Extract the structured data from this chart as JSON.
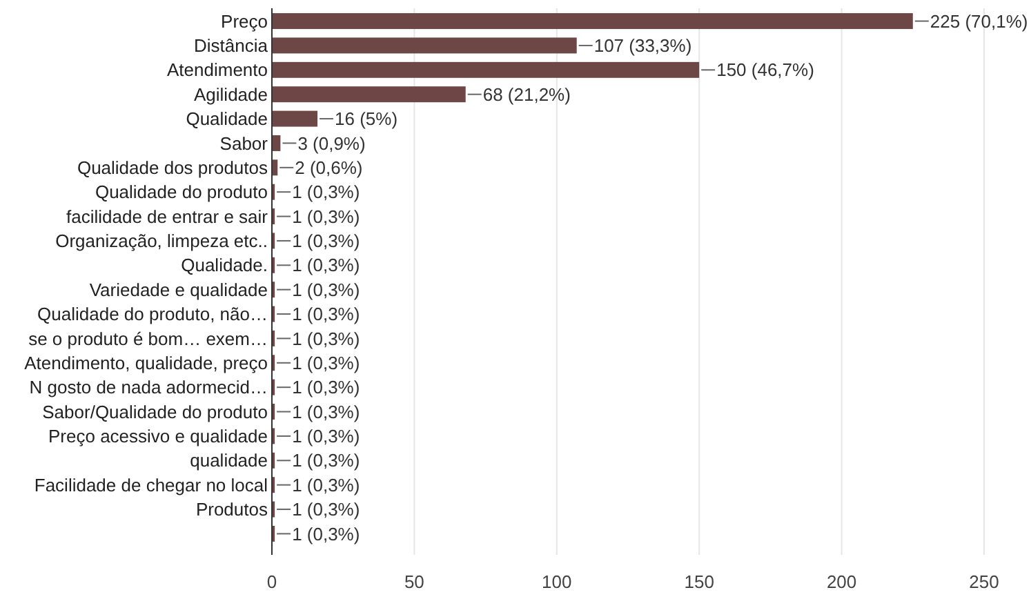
{
  "chart_data": {
    "type": "bar",
    "orientation": "horizontal",
    "categories": [
      "Preço",
      "Distância",
      "Atendimento",
      "Agilidade",
      "Qualidade",
      "Sabor",
      "Qualidade dos produtos",
      "Qualidade do produto",
      "facilidade de entrar e sair",
      "Organização, limpeza etc..",
      "Qualidade.",
      "Variedade e qualidade",
      "Qualidade do produto, não…",
      "se o produto é bom… exem…",
      "Atendimento, qualidade, preço",
      "N gosto de nada adormecid…",
      "Sabor/Qualidade do produto",
      "Preço acessivo e qualidade",
      "qualidade",
      "Facilidade de chegar no local",
      "Produtos",
      null
    ],
    "values": [
      225,
      107,
      150,
      68,
      16,
      3,
      2,
      1,
      1,
      1,
      1,
      1,
      1,
      1,
      1,
      1,
      1,
      1,
      1,
      1,
      1,
      1
    ],
    "value_labels": [
      "225 (70,1%)",
      "107 (33,3%)",
      "150 (46,7%)",
      "68 (21,2%)",
      "16 (5%)",
      "3 (0,9%)",
      "2 (0,6%)",
      "1 (0,3%)",
      "1 (0,3%)",
      "1 (0,3%)",
      "1 (0,3%)",
      "1 (0,3%)",
      "1 (0,3%)",
      "1 (0,3%)",
      "1 (0,3%)",
      "1 (0,3%)",
      "1 (0,3%)",
      "1 (0,3%)",
      "1 (0,3%)",
      "1 (0,3%)",
      "1 (0,3%)",
      "1 (0,3%)"
    ],
    "color": "#6d4646",
    "xlim": [
      0,
      250
    ],
    "xticks": [
      0,
      50,
      100,
      150,
      200,
      250
    ],
    "grid": "x"
  }
}
